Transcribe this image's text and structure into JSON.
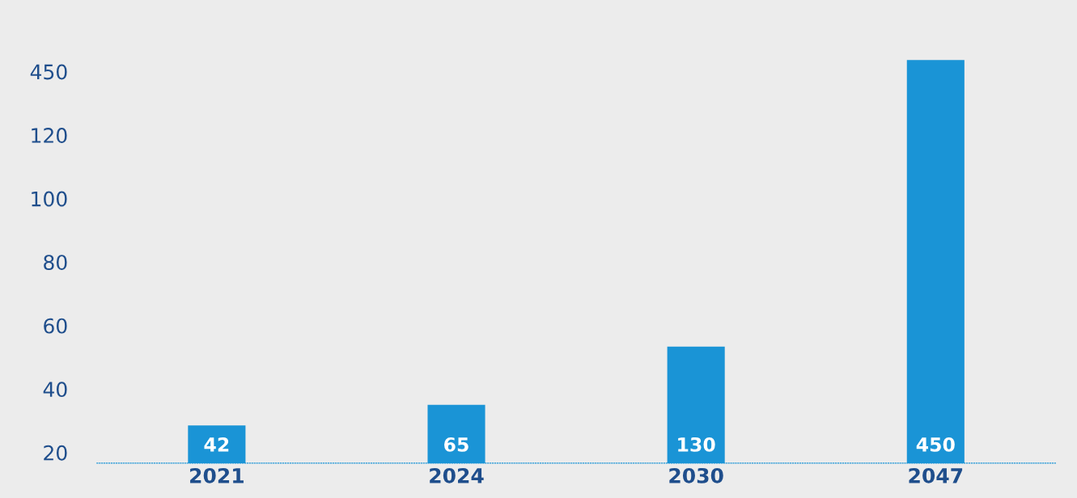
{
  "chart_data": {
    "type": "bar",
    "categories": [
      "2021",
      "2024",
      "2030",
      "2047"
    ],
    "values": [
      42,
      65,
      130,
      450
    ],
    "color": "#1a94d6",
    "data_labels": true,
    "tick_labels": "x",
    "grid": false,
    "annotations": [
      "450",
      "120",
      "100",
      "80",
      "60",
      "40",
      "20"
    ]
  }
}
